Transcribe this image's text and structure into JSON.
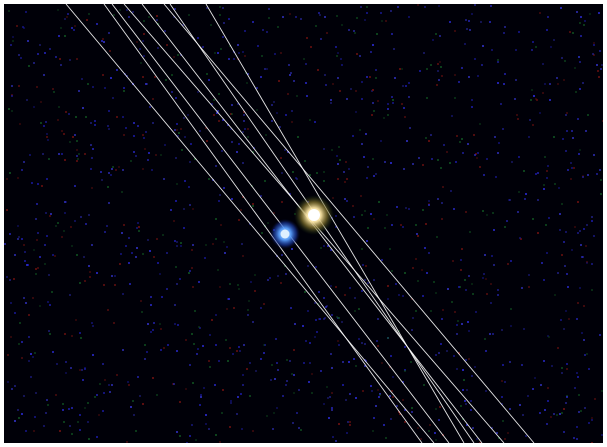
{
  "image": {
    "background_color": "#000008",
    "frame_color": "#ffffff",
    "noise_colors": [
      "#1a1aa0",
      "#2a2ad0",
      "#0f4f20",
      "#6a1010",
      "#3030c0"
    ],
    "track_color": "#ffffff",
    "sources": [
      {
        "name": "bright-yellow-source",
        "color": "#ffe9a8",
        "halo_color": "#6a6a20"
      },
      {
        "name": "blue-source",
        "color": "#7fb8ff",
        "halo_color": "#1e4fd0"
      }
    ]
  }
}
